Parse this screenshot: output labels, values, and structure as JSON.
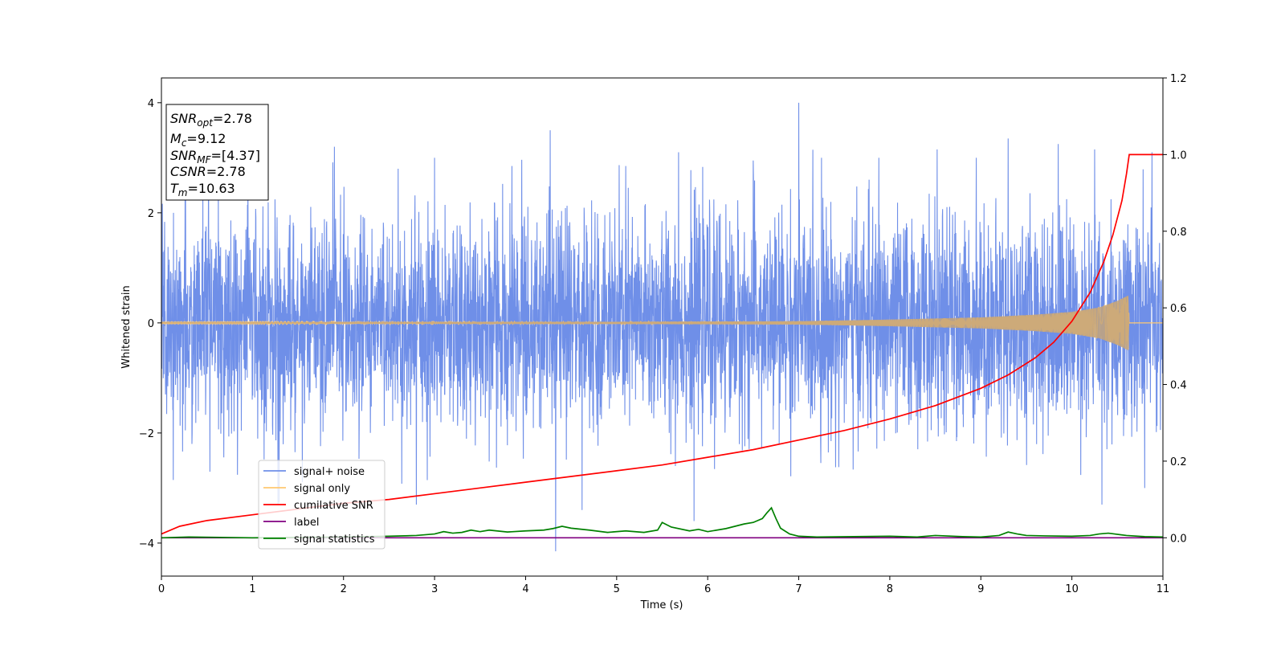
{
  "chart_data": {
    "type": "line",
    "xlabel": "Time (s)",
    "ylabel": "Whitened strain",
    "xlim": [
      0,
      11
    ],
    "ylim": [
      -4.6,
      4.45
    ],
    "y2lim": [
      -0.1,
      1.2
    ],
    "x_ticks": [
      0,
      1,
      2,
      3,
      4,
      5,
      6,
      7,
      8,
      9,
      10,
      11
    ],
    "y_ticks": [
      -4,
      -2,
      0,
      2,
      4
    ],
    "y2_ticks": [
      "0.0",
      "0.2",
      "0.4",
      "0.6",
      "0.8",
      "1.0",
      "1.2"
    ],
    "grid": false,
    "legend_position": "lower-left",
    "colors": {
      "signal_noise": "#6f8fe8",
      "signal_only": "#ffc870",
      "cumulative_snr": "#ff0000",
      "label": "#800080",
      "signal_statistics": "#008000",
      "overlap": "#c4a47a"
    },
    "annotation": {
      "lines": [
        {
          "sym": "SNR",
          "sub": "opt",
          "val": "=2.78"
        },
        {
          "sym": "M",
          "sub": "c",
          "val": "=9.12"
        },
        {
          "sym": "SNR",
          "sub": "MF",
          "val": "=[4.37]"
        },
        {
          "sym": "CSNR",
          "sub": "",
          "val": "=2.78"
        },
        {
          "sym": "T",
          "sub": "m",
          "val": "=10.63"
        }
      ]
    },
    "series": [
      {
        "name": "signal+ noise",
        "axis": "left",
        "noise_std": 0.95,
        "noise_seed": 7,
        "peaks": [
          [
            0.95,
            2.95
          ],
          [
            1.28,
            -3.3
          ],
          [
            1.9,
            3.2
          ],
          [
            2.6,
            2.8
          ],
          [
            2.8,
            -3.3
          ],
          [
            3.0,
            3.0
          ],
          [
            3.85,
            2.85
          ],
          [
            4.27,
            3.5
          ],
          [
            4.33,
            -4.15
          ],
          [
            4.62,
            -3.4
          ],
          [
            5.1,
            2.85
          ],
          [
            5.68,
            3.1
          ],
          [
            5.85,
            -3.6
          ],
          [
            6.5,
            2.95
          ],
          [
            7.0,
            4.0
          ],
          [
            7.25,
            3.0
          ],
          [
            7.88,
            3.0
          ],
          [
            8.52,
            3.15
          ],
          [
            8.95,
            3.0
          ],
          [
            9.3,
            3.35
          ],
          [
            9.85,
            3.25
          ],
          [
            10.25,
            3.15
          ],
          [
            10.33,
            -3.3
          ],
          [
            10.8,
            -3.0
          ],
          [
            10.88,
            3.1
          ]
        ]
      },
      {
        "name": "signal only",
        "axis": "left",
        "envelope": [
          [
            0,
            0.01
          ],
          [
            5,
            0.02
          ],
          [
            7,
            0.03
          ],
          [
            8,
            0.06
          ],
          [
            9,
            0.1
          ],
          [
            9.6,
            0.15
          ],
          [
            10,
            0.2
          ],
          [
            10.3,
            0.28
          ],
          [
            10.5,
            0.4
          ],
          [
            10.62,
            0.5
          ],
          [
            10.63,
            0.0
          ],
          [
            11,
            0.0
          ]
        ]
      },
      {
        "name": "cumilative SNR",
        "axis": "right",
        "x": [
          0,
          0.2,
          0.5,
          1,
          1.5,
          2,
          2.5,
          3,
          3.5,
          4,
          4.5,
          5,
          5.5,
          6,
          6.5,
          7,
          7.5,
          8,
          8.5,
          9,
          9.3,
          9.6,
          9.8,
          10,
          10.2,
          10.35,
          10.45,
          10.55,
          10.6,
          10.63,
          11
        ],
        "y": [
          0.01,
          0.03,
          0.045,
          0.06,
          0.075,
          0.09,
          0.1,
          0.115,
          0.13,
          0.145,
          0.16,
          0.175,
          0.19,
          0.21,
          0.23,
          0.255,
          0.28,
          0.31,
          0.345,
          0.39,
          0.425,
          0.47,
          0.51,
          0.565,
          0.64,
          0.72,
          0.79,
          0.88,
          0.95,
          1.0,
          1.0
        ]
      },
      {
        "name": "label",
        "axis": "right",
        "x": [
          0,
          11
        ],
        "y": [
          0.0,
          0.0
        ]
      },
      {
        "name": "signal statistics",
        "axis": "right",
        "x": [
          0,
          0.3,
          1,
          2,
          2.5,
          2.8,
          3.0,
          3.1,
          3.2,
          3.3,
          3.4,
          3.5,
          3.6,
          3.8,
          4.0,
          4.2,
          4.3,
          4.4,
          4.5,
          4.7,
          4.9,
          5.1,
          5.3,
          5.45,
          5.5,
          5.6,
          5.8,
          5.9,
          6.0,
          6.2,
          6.4,
          6.5,
          6.6,
          6.65,
          6.7,
          6.75,
          6.8,
          6.9,
          7.0,
          7.2,
          8.0,
          8.3,
          8.5,
          8.8,
          9.0,
          9.2,
          9.3,
          9.4,
          9.5,
          9.7,
          10.0,
          10.2,
          10.3,
          10.4,
          10.6,
          10.8,
          11
        ],
        "y": [
          0.0,
          0.002,
          0.0,
          0.002,
          0.004,
          0.006,
          0.01,
          0.016,
          0.012,
          0.014,
          0.02,
          0.016,
          0.02,
          0.015,
          0.018,
          0.02,
          0.024,
          0.03,
          0.025,
          0.02,
          0.014,
          0.018,
          0.014,
          0.02,
          0.04,
          0.028,
          0.018,
          0.022,
          0.016,
          0.024,
          0.036,
          0.04,
          0.05,
          0.065,
          0.078,
          0.05,
          0.025,
          0.01,
          0.004,
          0.002,
          0.004,
          0.002,
          0.006,
          0.003,
          0.002,
          0.006,
          0.015,
          0.01,
          0.006,
          0.005,
          0.004,
          0.006,
          0.01,
          0.012,
          0.006,
          0.003,
          0.002
        ]
      }
    ]
  }
}
